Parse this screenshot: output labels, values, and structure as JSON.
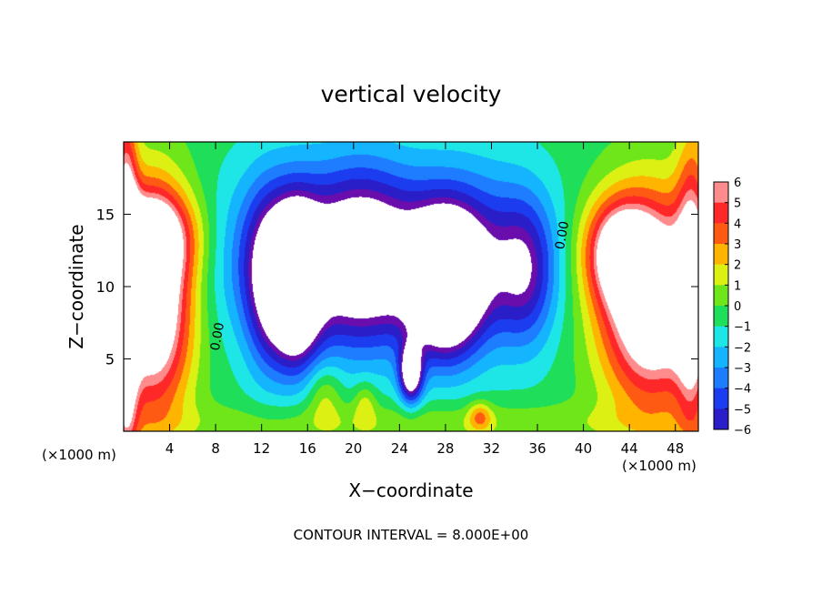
{
  "chart_data": {
    "type": "heatmap",
    "title": "vertical velocity",
    "xlabel": "X−coordinate",
    "ylabel": "Z−coordinate",
    "x_unit_left": "(×1000 m)",
    "x_unit_right": "(×1000 m)",
    "footer": "CONTOUR INTERVAL = 8.000E+00",
    "xlim": [
      0,
      50
    ],
    "ylim": [
      0,
      20
    ],
    "x_ticks": [
      4,
      8,
      12,
      16,
      20,
      24,
      28,
      32,
      36,
      40,
      44,
      48
    ],
    "x_tick_labels": [
      "4",
      "8",
      "12",
      "16",
      "20",
      "24",
      "28",
      "32",
      "36",
      "40",
      "44",
      "48"
    ],
    "y_ticks": [
      5,
      10,
      15
    ],
    "y_tick_labels": [
      "5",
      "10",
      "15"
    ],
    "contour_labels": [
      {
        "text": "0.00",
        "x": 8.5,
        "y": 6.5
      },
      {
        "text": "0.00",
        "x": 38.5,
        "y": 13.5
      }
    ],
    "colorbar": {
      "min": -6,
      "max": 6,
      "tick_values": [
        6,
        5,
        4,
        3,
        2,
        1,
        0,
        -1,
        -2,
        -3,
        -4,
        -5,
        -6
      ],
      "tick_labels": [
        "6",
        "5",
        "4",
        "3",
        "2",
        "1",
        "0",
        "−1",
        "−2",
        "−3",
        "−4",
        "−5",
        "−6"
      ]
    },
    "blobs": [
      {
        "x": 2.5,
        "y": 9,
        "rx": 3.4,
        "ry": 7.5,
        "v": 10
      },
      {
        "x": 2.3,
        "y": 13.5,
        "rx": 4,
        "ry": 3,
        "v": 5
      },
      {
        "x": 0.2,
        "y": 10,
        "rx": 1,
        "ry": 12,
        "v": 8
      },
      {
        "x": 46,
        "y": 9,
        "rx": 4.5,
        "ry": 7,
        "v": 10
      },
      {
        "x": 43,
        "y": 12.5,
        "rx": 3,
        "ry": 3.5,
        "v": 6
      },
      {
        "x": 49.5,
        "y": 10,
        "rx": 1.4,
        "ry": 10,
        "v": 6
      },
      {
        "x": 25,
        "y": 0.5,
        "rx": 25,
        "ry": 1.5,
        "v": 1.5
      },
      {
        "x": 16,
        "y": 12,
        "rx": 7,
        "ry": 6,
        "v": -6
      },
      {
        "x": 21,
        "y": 12,
        "rx": 4,
        "ry": 6,
        "v": -5
      },
      {
        "x": 29,
        "y": 12,
        "rx": 7,
        "ry": 6,
        "v": -6
      },
      {
        "x": 35,
        "y": 11,
        "rx": 2.5,
        "ry": 5,
        "v": -4
      },
      {
        "x": 12.5,
        "y": 10,
        "rx": 2,
        "ry": 6,
        "v": -4
      },
      {
        "x": 15,
        "y": 10,
        "rx": 2,
        "ry": 5,
        "v": -10
      },
      {
        "x": 28,
        "y": 10,
        "rx": 3,
        "ry": 4.5,
        "v": -10
      },
      {
        "x": 25,
        "y": 4,
        "rx": 1,
        "ry": 2,
        "v": -8
      },
      {
        "x": 17.5,
        "y": 2.5,
        "rx": 1.5,
        "ry": 2,
        "v": 2
      },
      {
        "x": 21,
        "y": 2,
        "rx": 1,
        "ry": 1.5,
        "v": 2
      },
      {
        "x": 31,
        "y": 1,
        "rx": 1,
        "ry": 1,
        "v": 3
      }
    ]
  }
}
